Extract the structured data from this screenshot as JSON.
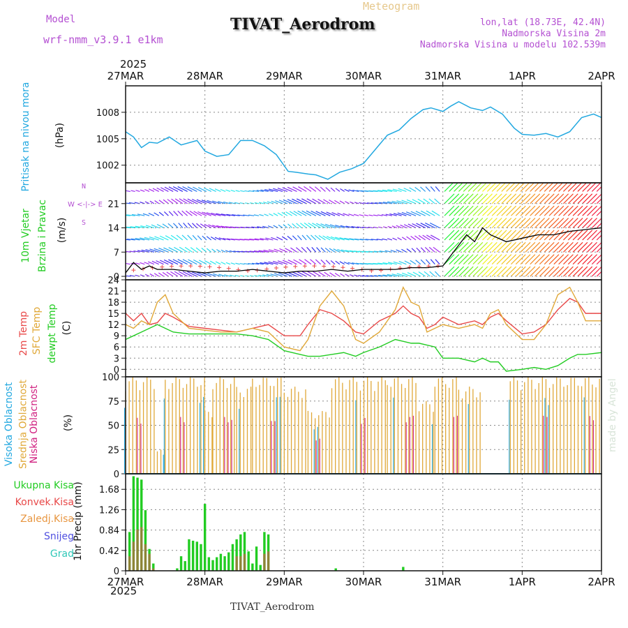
{
  "header": {
    "model_label": "Model",
    "model_name": "wrf-nmm_v3.9.1  e1km",
    "meteogram_label": "Meteogram",
    "station": "TIVAT_Aerodrom",
    "lonlat": "lon,lat (18.73E, 42.4N)",
    "altitude": "Nadmorska Visina 2m",
    "model_altitude": "Nadmorska Visina u modelu 102.539m",
    "year_top": "2025",
    "year_bottom": "2025",
    "footer_station": "TIVAT_Aerodrom",
    "watermark": "made by Angel",
    "colors": {
      "purple": "#b450d2",
      "gold": "#e6c88c",
      "cyan": "#22a8e0",
      "green": "#22cc22",
      "red": "#e84848",
      "orange": "#e89640",
      "blue": "#5050e0",
      "teal": "#30c8b8",
      "magenta": "#d02080"
    }
  },
  "time_axis": {
    "labels": [
      "27MAR",
      "28MAR",
      "29MAR",
      "30MAR",
      "31MAR",
      "1APR",
      "2APR"
    ]
  },
  "chart_data": [
    {
      "type": "line",
      "panel": "pressure",
      "ylabel_left": "Pritisak na nivou mora",
      "ylabel_unit": "(hPa)",
      "yticks": [
        1002,
        1005,
        1008
      ],
      "ylim": [
        1000,
        1011
      ],
      "x": [
        0,
        0.1,
        0.2,
        0.3,
        0.4,
        0.55,
        0.7,
        0.9,
        1.0,
        1.15,
        1.3,
        1.45,
        1.6,
        1.75,
        1.9,
        2.05,
        2.15,
        2.3,
        2.4,
        2.55,
        2.7,
        2.85,
        3.0,
        3.15,
        3.3,
        3.45,
        3.6,
        3.75,
        3.85,
        4.0,
        4.1,
        4.2,
        4.35,
        4.5,
        4.6,
        4.75,
        4.9,
        5.0,
        5.15,
        5.3,
        5.45,
        5.6,
        5.75,
        5.9,
        6.0
      ],
      "series": [
        {
          "color": "#22a8e0",
          "values": [
            1005.8,
            1005.2,
            1004.0,
            1004.6,
            1004.5,
            1005.2,
            1004.3,
            1004.8,
            1003.6,
            1003.0,
            1003.2,
            1004.8,
            1004.8,
            1004.2,
            1003.2,
            1001.3,
            1001.2,
            1001.0,
            1000.9,
            1000.4,
            1001.2,
            1001.6,
            1002.2,
            1003.8,
            1005.4,
            1006.0,
            1007.3,
            1008.3,
            1008.5,
            1008.1,
            1008.7,
            1009.2,
            1008.5,
            1008.2,
            1008.6,
            1007.8,
            1006.2,
            1005.5,
            1005.4,
            1005.6,
            1005.2,
            1005.8,
            1007.4,
            1007.8,
            1007.4
          ]
        }
      ]
    },
    {
      "type": "line",
      "panel": "wind",
      "ylabel_left_1": "10m Vjetar",
      "ylabel_left_2": "Brzina i Pravac",
      "ylabel_unit": "(m/s)",
      "compass_n": "N",
      "compass_ew": "W <-|-> E",
      "compass_s": "S",
      "yticks": [
        0,
        7,
        14,
        21
      ],
      "ylim": [
        -1,
        27
      ],
      "x": [
        0,
        0.1,
        0.2,
        0.3,
        0.4,
        0.6,
        0.8,
        1.0,
        1.2,
        1.4,
        1.6,
        1.8,
        2.0,
        2.2,
        2.4,
        2.6,
        2.8,
        3.0,
        3.2,
        3.4,
        3.6,
        3.8,
        4.0,
        4.1,
        4.2,
        4.3,
        4.4,
        4.5,
        4.6,
        4.8,
        5.0,
        5.2,
        5.4,
        5.6,
        5.8,
        6.0
      ],
      "series": [
        {
          "color": "#000000",
          "values": [
            1,
            4,
            2,
            3,
            2,
            2,
            1.5,
            1,
            1.5,
            1.5,
            2,
            1.5,
            1,
            1.5,
            1.5,
            2,
            1.5,
            2,
            2,
            2,
            2.5,
            2.5,
            3,
            6,
            9,
            12,
            10,
            14,
            12,
            10,
            11,
            12,
            12,
            13,
            13.5,
            14
          ]
        }
      ]
    },
    {
      "type": "line",
      "panel": "temperature",
      "ylabel_red": "2m Temp",
      "ylabel_gold": "SFC Temp",
      "ylabel_green": "dewpt Temp",
      "ylabel_unit": "(C)",
      "yticks": [
        0,
        3,
        6,
        9,
        12,
        15,
        18,
        21,
        24
      ],
      "ylim": [
        -2,
        24
      ],
      "x": [
        0,
        0.1,
        0.2,
        0.3,
        0.4,
        0.5,
        0.6,
        0.8,
        1.0,
        1.2,
        1.4,
        1.6,
        1.8,
        2.0,
        2.2,
        2.3,
        2.45,
        2.6,
        2.75,
        2.9,
        3.0,
        3.2,
        3.4,
        3.5,
        3.6,
        3.7,
        3.8,
        3.9,
        4.0,
        4.2,
        4.4,
        4.5,
        4.6,
        4.7,
        4.8,
        5.0,
        5.15,
        5.3,
        5.45,
        5.6,
        5.7,
        5.8,
        6.0
      ],
      "series": [
        {
          "name": "2m Temp",
          "color": "#e84848",
          "values": [
            15,
            13,
            15,
            12,
            12.5,
            15,
            14,
            11.5,
            11,
            10.5,
            10,
            11,
            12,
            9,
            9,
            12,
            16,
            15,
            13,
            10,
            9.5,
            13,
            15,
            17,
            15,
            14,
            11,
            12,
            14,
            12,
            13,
            12,
            14,
            15,
            13,
            9.5,
            10,
            12,
            16,
            19,
            18,
            15,
            15
          ]
        },
        {
          "name": "SFC Temp",
          "color": "#e0a838",
          "values": [
            12,
            11,
            13,
            12,
            18,
            20,
            15,
            11,
            10.5,
            10,
            10,
            11,
            10,
            6,
            5,
            8,
            17,
            21,
            17,
            8,
            7,
            10,
            16,
            22,
            18,
            17,
            10,
            11,
            12,
            11,
            12,
            11,
            15,
            16,
            12,
            8,
            8,
            12,
            20,
            22,
            18,
            13,
            13
          ]
        },
        {
          "name": "dewpt Temp",
          "color": "#22cc22",
          "values": [
            8,
            9,
            10,
            11,
            12,
            11,
            10,
            9.5,
            9.5,
            9.5,
            9.5,
            9,
            8,
            5,
            4,
            3.5,
            3.5,
            4,
            4.5,
            3.5,
            4.5,
            6,
            8,
            7.5,
            7,
            7,
            6.5,
            6,
            3,
            3,
            2,
            3,
            2,
            2,
            -0.5,
            0,
            0.5,
            0,
            1,
            3,
            4,
            4,
            4.5
          ]
        }
      ]
    },
    {
      "type": "bar",
      "panel": "clouds",
      "ylabel_blue": "Visoka Oblacnost",
      "ylabel_gold": "Srednja Oblacnost",
      "ylabel_magenta": "Niska Oblacnost",
      "ylabel_unit": "(%)",
      "yticks": [
        0,
        25,
        50,
        75,
        100
      ],
      "ylim": [
        0,
        100
      ],
      "segments": [
        {
          "x0": 0.0,
          "x1": 0.4,
          "value": 100
        },
        {
          "x0": 0.4,
          "x1": 0.5,
          "value": 25
        },
        {
          "x0": 0.5,
          "x1": 1.0,
          "value": 100
        },
        {
          "x0": 1.0,
          "x1": 1.1,
          "value": 65
        },
        {
          "x0": 1.1,
          "x1": 1.4,
          "value": 100
        },
        {
          "x0": 1.4,
          "x1": 1.6,
          "value": 90
        },
        {
          "x0": 1.6,
          "x1": 2.0,
          "value": 100
        },
        {
          "x0": 2.0,
          "x1": 2.3,
          "value": 90
        },
        {
          "x0": 2.3,
          "x1": 2.6,
          "value": 65
        },
        {
          "x0": 2.6,
          "x1": 3.3,
          "value": 100
        },
        {
          "x0": 3.3,
          "x1": 3.7,
          "value": 100
        },
        {
          "x0": 3.7,
          "x1": 3.9,
          "value": 75
        },
        {
          "x0": 3.9,
          "x1": 4.2,
          "value": 100
        },
        {
          "x0": 4.2,
          "x1": 4.5,
          "value": 90
        },
        {
          "x0": 4.5,
          "x1": 4.85,
          "value": 0
        },
        {
          "x0": 4.85,
          "x1": 6.0,
          "value": 100
        }
      ]
    },
    {
      "type": "bar",
      "panel": "precip",
      "legend_total": "Ukupna Kisa",
      "legend_conv": "Konvek.Kisa",
      "legend_frozen": "Zaledj.Kisa",
      "legend_snow": "Snijeg",
      "legend_hail": "Grad",
      "ylabel_unit": "1hr Precip (mm)",
      "yticks": [
        "0",
        "0.42",
        "0.84",
        "1.26",
        "1.68"
      ],
      "ylim": [
        0,
        2.0
      ],
      "x": [
        0.05,
        0.1,
        0.15,
        0.2,
        0.25,
        0.3,
        0.35,
        0.65,
        0.7,
        0.75,
        0.8,
        0.85,
        0.9,
        0.95,
        1.0,
        1.05,
        1.1,
        1.15,
        1.2,
        1.25,
        1.3,
        1.35,
        1.4,
        1.45,
        1.5,
        1.55,
        1.6,
        1.65,
        1.7,
        1.75,
        1.8,
        2.65,
        3.5
      ],
      "total": [
        0.8,
        1.95,
        1.92,
        1.88,
        1.25,
        0.45,
        0.15,
        0.05,
        0.3,
        0.2,
        0.65,
        0.62,
        0.6,
        0.55,
        1.38,
        0.28,
        0.22,
        0.28,
        0.35,
        0.3,
        0.38,
        0.55,
        0.65,
        0.75,
        0.8,
        0.4,
        0.15,
        0.5,
        0.12,
        0.8,
        0.75,
        0.05,
        0.08
      ],
      "convective": [
        0.3,
        0.6,
        0.85,
        0.9,
        0.55,
        0.35,
        0.05,
        0.0,
        0.0,
        0.0,
        0.0,
        0.0,
        0.0,
        0.0,
        0.0,
        0.0,
        0.0,
        0.0,
        0.0,
        0.0,
        0.0,
        0.0,
        0.3,
        0.3,
        0.35,
        0.0,
        0.0,
        0.0,
        0.0,
        0.35,
        0.4,
        0.0,
        0.0
      ]
    }
  ]
}
